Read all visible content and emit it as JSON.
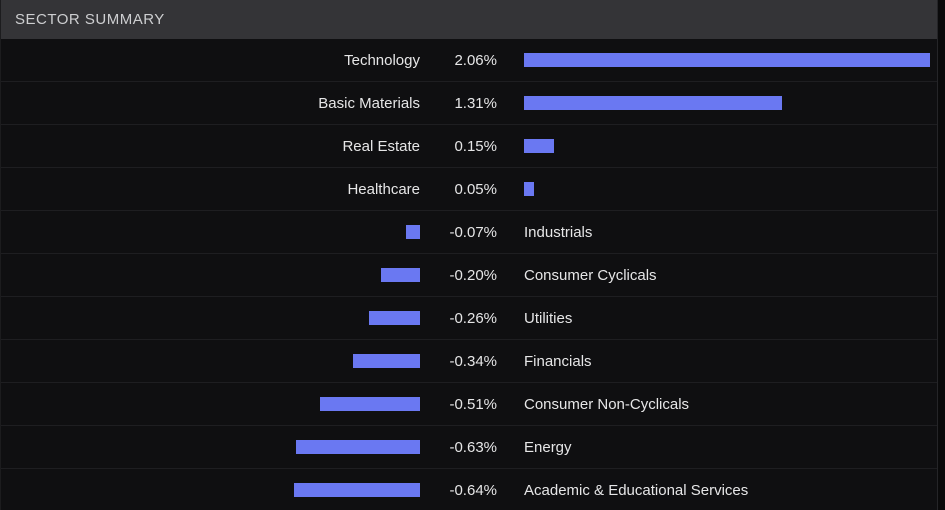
{
  "header": {
    "title": "SECTOR SUMMARY"
  },
  "chart_data": {
    "type": "bar",
    "orientation": "horizontal",
    "title": "SECTOR SUMMARY",
    "categories": [
      "Technology",
      "Basic Materials",
      "Real Estate",
      "Healthcare",
      "Industrials",
      "Consumer Cyclicals",
      "Utilities",
      "Financials",
      "Consumer Non-Cyclicals",
      "Energy",
      "Academic & Educational Services"
    ],
    "values": [
      2.06,
      1.31,
      0.15,
      0.05,
      -0.07,
      -0.2,
      -0.26,
      -0.34,
      -0.51,
      -0.63,
      -0.64
    ],
    "value_labels": [
      "2.06%",
      "1.31%",
      "0.15%",
      "0.05%",
      "-0.07%",
      "-0.20%",
      "-0.26%",
      "-0.34%",
      "-0.51%",
      "-0.63%",
      "-0.64%"
    ],
    "unit": "%",
    "xlim": [
      -0.7,
      2.1
    ],
    "grid": false,
    "legend": false,
    "bar_color": "#6A78F2",
    "positive_layout": "label-left, percent-center, bar-right",
    "negative_layout": "bar-left, percent-center, label-right"
  },
  "colors": {
    "panel_background": "#0f0f11",
    "header_background": "#343437",
    "header_text": "#cdced0",
    "row_separator": "#1e1e21",
    "text": "#e6e6e7",
    "bar": "#6A78F2"
  }
}
